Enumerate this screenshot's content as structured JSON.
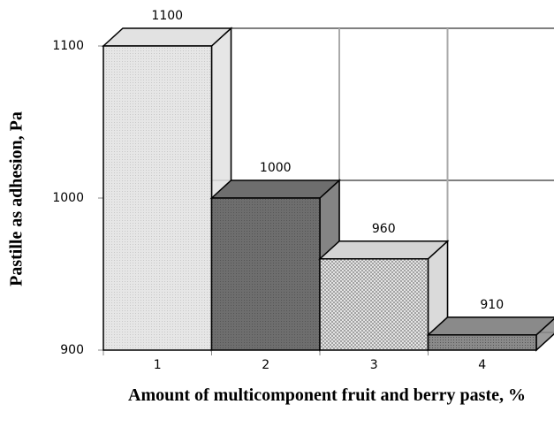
{
  "chart_data": {
    "type": "bar3d",
    "y_label": "Pastille as adhesion, Pa",
    "x_label": "Amount of multicomponent fruit and berry paste, %",
    "categories": [
      "1",
      "2",
      "3",
      "4"
    ],
    "values": [
      1100,
      1000,
      960,
      910
    ],
    "colors": [
      "#e2e2e2",
      "#6e6e6e",
      "#d4d4d4",
      "#8a8a8a"
    ],
    "ylim": [
      900,
      1100
    ],
    "yticks": [
      900,
      1000,
      1100
    ],
    "grid": true
  }
}
